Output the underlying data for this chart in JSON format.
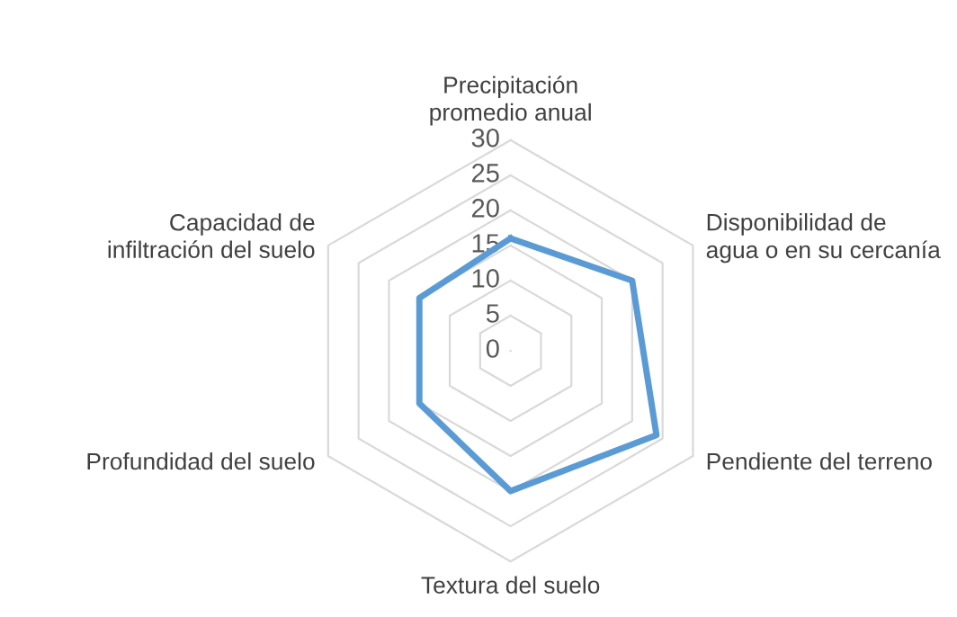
{
  "chart_data": {
    "type": "radar",
    "categories": [
      "Precipitación\npromedio anual",
      "Disponibilidad de\nagua o en su cercanía",
      "Pendiente del terreno",
      "Textura del suelo",
      "Profundidad del suelo",
      "Capacidad de\ninfiltración del suelo"
    ],
    "series": [
      {
        "color": "#5b9bd5",
        "values": [
          16,
          20,
          24,
          20,
          15,
          15
        ]
      }
    ],
    "ylim": [
      0,
      30
    ],
    "yticks": [
      0,
      5,
      10,
      15,
      20,
      25,
      30
    ],
    "grid": true,
    "marker": "none",
    "line_style": "solid",
    "legend": false
  }
}
